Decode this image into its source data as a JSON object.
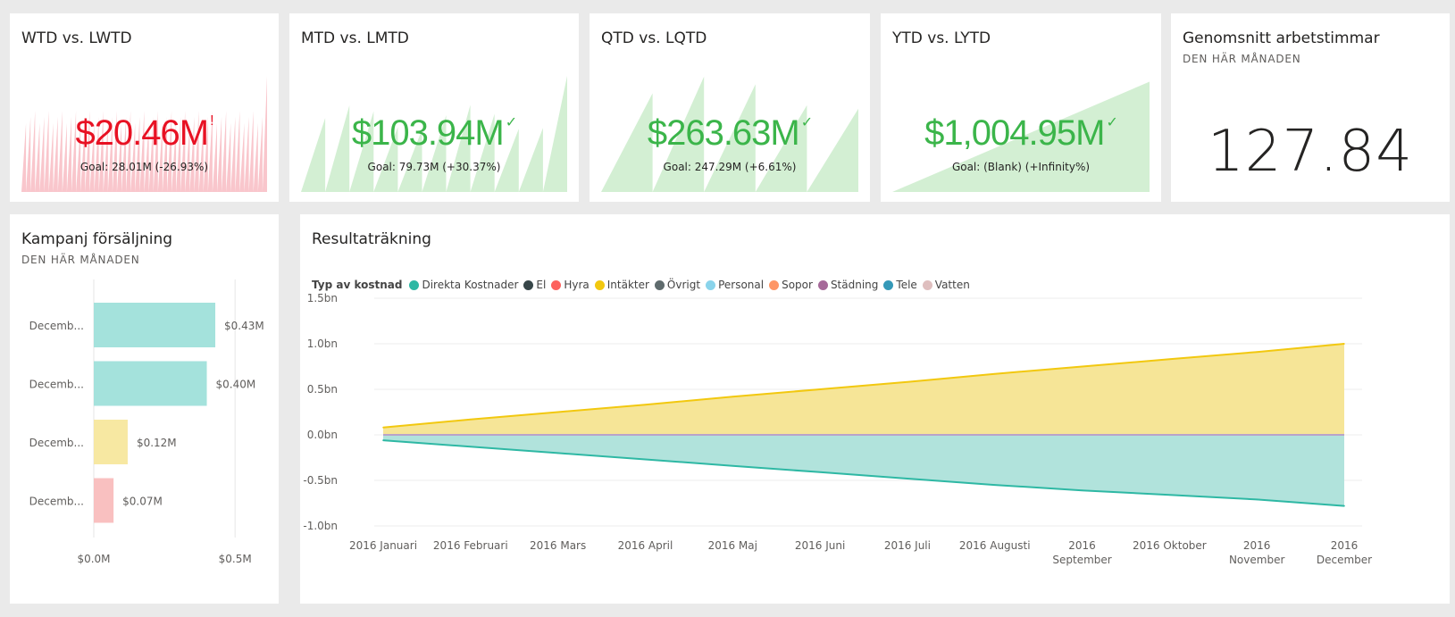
{
  "kpis": [
    {
      "title": "WTD vs. LWTD",
      "value": "$20.46M",
      "goal": "Goal: 28.01M (-26.93%)",
      "status": "bad",
      "mark": "!",
      "color": "#e81123",
      "fill": "#f9c6cc"
    },
    {
      "title": "MTD vs. LMTD",
      "value": "$103.94M",
      "goal": "Goal: 79.73M (+30.37%)",
      "status": "good",
      "mark": "✓",
      "color": "#3bb54a",
      "fill": "#d3efd3"
    },
    {
      "title": "QTD vs. LQTD",
      "value": "$263.63M",
      "goal": "Goal: 247.29M (+6.61%)",
      "status": "good",
      "mark": "✓",
      "color": "#3bb54a",
      "fill": "#d3efd3"
    },
    {
      "title": "YTD vs. LYTD",
      "value": "$1,004.95M",
      "goal": "Goal: (Blank) (+Infinity%)",
      "status": "good",
      "mark": "✓",
      "color": "#3bb54a",
      "fill": "#d3efd3"
    }
  ],
  "avg_hours": {
    "title": "Genomsnitt arbetstimmar",
    "subtitle": "DEN HÄR MÅNADEN",
    "value": "127.84"
  },
  "campaign": {
    "title": "Kampanj försäljning",
    "subtitle": "DEN HÄR MÅNADEN"
  },
  "income": {
    "title": "Resultaträkning",
    "legend_title": "Typ av kostnad",
    "legend": [
      {
        "name": "Direkta Kostnader",
        "color": "#2eb8a4"
      },
      {
        "name": "El",
        "color": "#374649"
      },
      {
        "name": "Hyra",
        "color": "#fd625e"
      },
      {
        "name": "Intäkter",
        "color": "#f2c80f"
      },
      {
        "name": "Övrigt",
        "color": "#5f6b6d"
      },
      {
        "name": "Personal",
        "color": "#8ad4eb"
      },
      {
        "name": "Sopor",
        "color": "#fe9666"
      },
      {
        "name": "Städning",
        "color": "#a66999"
      },
      {
        "name": "Tele",
        "color": "#3599b8"
      },
      {
        "name": "Vatten",
        "color": "#dfbfbf"
      }
    ]
  },
  "chart_data": [
    {
      "type": "bar",
      "orientation": "horizontal",
      "categories": [
        "Decemb...",
        "Decemb...",
        "Decemb...",
        "Decemb..."
      ],
      "values": [
        0.43,
        0.4,
        0.12,
        0.07
      ],
      "data_labels": [
        "$0.43M",
        "$0.40M",
        "$0.12M",
        "$0.07M"
      ],
      "colors": [
        "#a4e2dc",
        "#a4e2dc",
        "#f7e8a2",
        "#f9c0c0"
      ],
      "xlim": [
        0,
        0.55
      ],
      "x_ticks": [
        0,
        0.5
      ],
      "x_tick_labels": [
        "$0.0M",
        "$0.5M"
      ],
      "grid": true
    },
    {
      "type": "area",
      "categories": [
        "2016 Januari",
        "2016 Februari",
        "2016 Mars",
        "2016 April",
        "2016 Maj",
        "2016 Juni",
        "2016 Juli",
        "2016 Augusti",
        "2016\nSeptember",
        "2016 Oktober",
        "2016\nNovember",
        "2016\nDecember"
      ],
      "series": [
        {
          "name": "Intäkter",
          "values": [
            0.08,
            0.17,
            0.25,
            0.33,
            0.42,
            0.5,
            0.58,
            0.67,
            0.75,
            0.83,
            0.91,
            1.0
          ],
          "color": "#f2c80f",
          "fill": "#f6e597"
        },
        {
          "name": "Direkta Kostnader",
          "values": [
            -0.06,
            -0.13,
            -0.2,
            -0.27,
            -0.34,
            -0.41,
            -0.48,
            -0.55,
            -0.61,
            -0.66,
            -0.71,
            -0.78
          ],
          "color": "#2eb8a4",
          "fill": "#b1e3dc"
        }
      ],
      "ylim": [
        -1.0,
        1.5
      ],
      "y_ticks": [
        -1.0,
        -0.5,
        0.0,
        0.5,
        1.0,
        1.5
      ],
      "y_tick_labels": [
        "-1.0bn",
        "-0.5bn",
        "0.0bn",
        "0.5bn",
        "1.0bn",
        "1.5bn"
      ],
      "grid": true,
      "legend_position": "top-left"
    }
  ]
}
